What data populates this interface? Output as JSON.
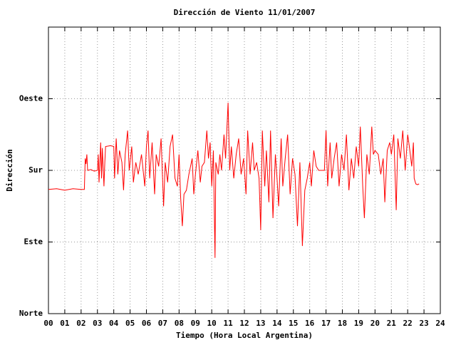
{
  "chart_data": {
    "type": "line",
    "title": "Dirección de Viento 11/01/2007",
    "x_label": "Tiempo (Hora Local Argentina)",
    "y_label": "Dirección",
    "color": "#ff0000",
    "grid": true,
    "xlim": [
      0,
      24
    ],
    "ylim": [
      0,
      360
    ],
    "xticks": [
      {
        "value": 0,
        "label": "00"
      },
      {
        "value": 1,
        "label": "01"
      },
      {
        "value": 2,
        "label": "02"
      },
      {
        "value": 3,
        "label": "03"
      },
      {
        "value": 4,
        "label": "04"
      },
      {
        "value": 5,
        "label": "05"
      },
      {
        "value": 6,
        "label": "06"
      },
      {
        "value": 7,
        "label": "07"
      },
      {
        "value": 8,
        "label": "08"
      },
      {
        "value": 9,
        "label": "09"
      },
      10,
      11,
      12,
      13,
      14,
      15,
      16,
      17,
      18,
      19,
      20,
      21,
      22,
      23,
      24
    ],
    "yticks": [
      {
        "value": 0,
        "label": "Norte"
      },
      {
        "value": 90,
        "label": "Este"
      },
      {
        "value": 180,
        "label": "Sur"
      },
      {
        "value": 270,
        "label": "Oeste"
      }
    ],
    "x": [
      0,
      0.5,
      1.0,
      1.5,
      2.0,
      2.2,
      2.25,
      2.3,
      2.35,
      2.4,
      2.6,
      2.8,
      3.0,
      3.05,
      3.1,
      3.2,
      3.25,
      3.3,
      3.4,
      3.45,
      3.5,
      3.8,
      4.0,
      4.05,
      4.15,
      4.25,
      4.35,
      4.5,
      4.6,
      4.7,
      4.85,
      4.95,
      5.1,
      5.2,
      5.35,
      5.5,
      5.7,
      5.9,
      6.0,
      6.1,
      6.2,
      6.35,
      6.5,
      6.6,
      6.75,
      6.9,
      7.05,
      7.15,
      7.3,
      7.45,
      7.6,
      7.75,
      7.9,
      8.0,
      8.1,
      8.2,
      8.3,
      8.45,
      8.6,
      8.8,
      8.9,
      9.0,
      9.15,
      9.3,
      9.4,
      9.55,
      9.7,
      9.8,
      9.9,
      10.0,
      10.1,
      10.2,
      10.25,
      10.4,
      10.5,
      10.6,
      10.75,
      10.85,
      11.0,
      11.1,
      11.2,
      11.35,
      11.5,
      11.65,
      11.8,
      11.95,
      12.1,
      12.2,
      12.35,
      12.5,
      12.6,
      12.75,
      12.9,
      13.0,
      13.1,
      13.25,
      13.35,
      13.5,
      13.6,
      13.75,
      13.9,
      14.0,
      14.1,
      14.25,
      14.35,
      14.5,
      14.65,
      14.8,
      14.95,
      15.1,
      15.25,
      15.4,
      15.55,
      15.7,
      15.85,
      16.0,
      16.1,
      16.25,
      16.4,
      16.55,
      16.7,
      16.9,
      17.0,
      17.1,
      17.25,
      17.35,
      17.5,
      17.65,
      17.8,
      17.95,
      18.1,
      18.25,
      18.4,
      18.55,
      18.7,
      18.85,
      19.0,
      19.1,
      19.25,
      19.35,
      19.5,
      19.65,
      19.8,
      19.9,
      20.0,
      20.2,
      20.35,
      20.5,
      20.6,
      20.75,
      20.9,
      21.0,
      21.15,
      21.3,
      21.4,
      21.55,
      21.7,
      21.85,
      22.0,
      22.1,
      22.25,
      22.35,
      22.4,
      22.5,
      22.6,
      22.7
    ],
    "values": [
      156,
      157,
      155,
      157,
      156,
      156,
      195,
      188,
      200,
      180,
      181,
      179,
      180,
      200,
      165,
      215,
      170,
      208,
      160,
      190,
      210,
      211,
      210,
      170,
      220,
      175,
      205,
      190,
      155,
      200,
      230,
      180,
      210,
      165,
      190,
      175,
      200,
      160,
      210,
      230,
      170,
      215,
      150,
      200,
      185,
      220,
      135,
      190,
      165,
      210,
      225,
      170,
      160,
      200,
      145,
      110,
      150,
      155,
      175,
      195,
      150,
      175,
      205,
      165,
      185,
      190,
      230,
      195,
      215,
      160,
      205,
      70,
      190,
      175,
      200,
      180,
      225,
      195,
      265,
      180,
      210,
      170,
      200,
      220,
      175,
      195,
      150,
      230,
      175,
      215,
      180,
      190,
      170,
      105,
      230,
      160,
      205,
      140,
      230,
      120,
      200,
      170,
      135,
      220,
      160,
      195,
      225,
      150,
      195,
      175,
      110,
      190,
      85,
      155,
      170,
      190,
      160,
      205,
      185,
      180,
      180,
      180,
      230,
      160,
      215,
      170,
      195,
      215,
      160,
      200,
      180,
      225,
      155,
      195,
      170,
      210,
      185,
      235,
      160,
      120,
      200,
      175,
      235,
      200,
      205,
      200,
      175,
      195,
      140,
      205,
      215,
      200,
      225,
      130,
      220,
      195,
      230,
      180,
      225,
      210,
      185,
      215,
      170,
      163,
      162,
      163
    ]
  }
}
